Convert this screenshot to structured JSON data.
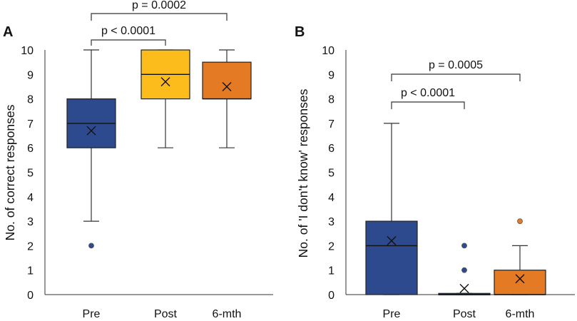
{
  "chart_data": [
    {
      "type": "boxplot",
      "panel_label": "A",
      "ylabel": "No. of correct responses",
      "ylim": [
        0,
        10
      ],
      "yticks": [
        0,
        1,
        2,
        3,
        4,
        5,
        6,
        7,
        8,
        9,
        10
      ],
      "categories": [
        "Pre",
        "Post",
        "6-mth"
      ],
      "boxes": [
        {
          "name": "Pre",
          "min": 3,
          "q1": 6,
          "median": 7,
          "q3": 8,
          "max": 10,
          "mean": 6.7,
          "outliers": [
            2
          ],
          "color": "#2e4a8e"
        },
        {
          "name": "Post",
          "min": 6,
          "q1": 8,
          "median": 9,
          "q3": 10,
          "max": 10,
          "mean": 8.7,
          "outliers": [],
          "color": "#fbbc1c"
        },
        {
          "name": "6-mth",
          "min": 6,
          "q1": 8,
          "median": 8,
          "q3": 9.5,
          "max": 10,
          "mean": 8.5,
          "outliers": [],
          "color": "#e57a25"
        }
      ],
      "annotations": [
        {
          "from": "Pre",
          "to": "Post",
          "text": "p < 0.0001"
        },
        {
          "from": "Pre",
          "to": "6-mth",
          "text": "p = 0.0002"
        }
      ]
    },
    {
      "type": "boxplot",
      "panel_label": "B",
      "ylabel": "No. of 'I don't know' responses",
      "ylim": [
        0,
        10
      ],
      "yticks": [
        0,
        1,
        2,
        3,
        4,
        5,
        6,
        7,
        8,
        9,
        10
      ],
      "categories": [
        "Pre",
        "Post",
        "6-mth"
      ],
      "boxes": [
        {
          "name": "Pre",
          "min": 0,
          "q1": 0,
          "median": 2,
          "q3": 3,
          "max": 7,
          "mean": 2.2,
          "outliers": [],
          "color": "#2e4a8e"
        },
        {
          "name": "Post",
          "min": 0,
          "q1": 0,
          "median": 0,
          "q3": 0.05,
          "max": 0.05,
          "mean": 0.25,
          "outliers": [
            1,
            2
          ],
          "color": "#2e4a8e"
        },
        {
          "name": "6-mth",
          "min": 0,
          "q1": 0,
          "median": 0,
          "q3": 1,
          "max": 2,
          "mean": 0.65,
          "outliers": [
            3
          ],
          "color": "#e57a25"
        }
      ],
      "annotations": [
        {
          "from": "Pre",
          "to": "Post",
          "text": "p < 0.0001"
        },
        {
          "from": "Pre",
          "to": "6-mth",
          "text": "p = 0.0005"
        }
      ]
    }
  ]
}
